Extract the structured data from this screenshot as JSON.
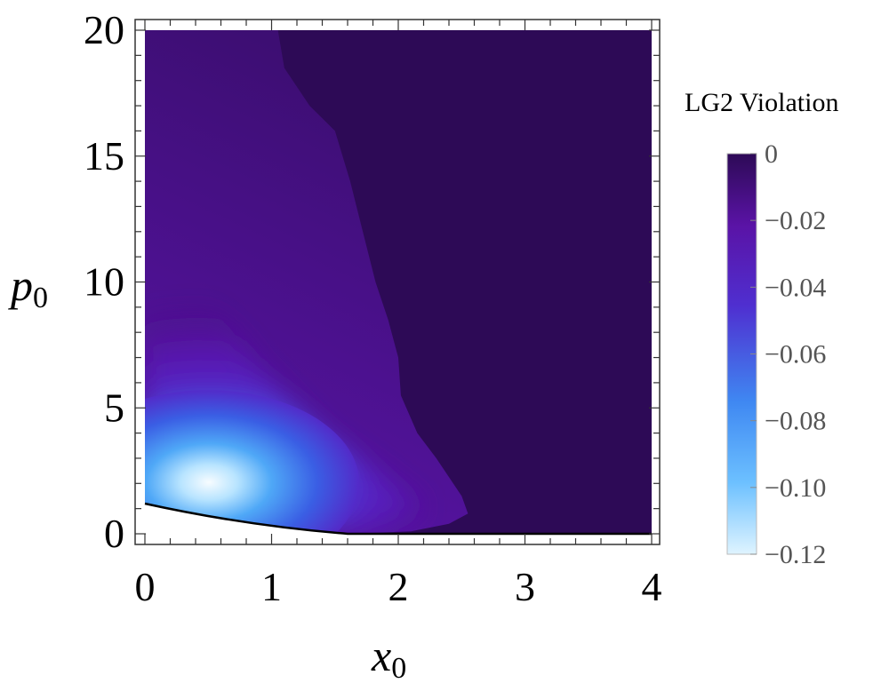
{
  "chart_data": {
    "type": "heatmap",
    "xlabel": "x",
    "xlabel_sub": "0",
    "ylabel": "p",
    "ylabel_sub": "0",
    "xlim": [
      0,
      4
    ],
    "ylim": [
      0,
      20
    ],
    "x_ticks": [
      "0",
      "1",
      "2",
      "3",
      "4"
    ],
    "y_ticks": [
      "0",
      "5",
      "10",
      "15",
      "20"
    ],
    "x_tick_values": [
      0,
      1,
      2,
      3,
      4
    ],
    "y_tick_values": [
      0,
      5,
      10,
      15,
      20
    ],
    "grid": false,
    "colorbar": {
      "title": "LG2 Violation",
      "range": [
        -0.12,
        0
      ],
      "ticks": [
        "0",
        "−0.02",
        "−0.04",
        "−0.06",
        "−0.08",
        "−0.10",
        "−0.12"
      ],
      "tick_values": [
        0,
        -0.02,
        -0.04,
        -0.06,
        -0.08,
        -0.1,
        -0.12
      ],
      "placement": "right"
    },
    "colors": {
      "zero": "#2d0a56",
      "mid": "#6a17b2",
      "low": "#3f88f2",
      "min": "#dff4ff"
    },
    "minimum_location": {
      "x": 0.5,
      "y": 2.0,
      "value": -0.12
    },
    "boundary_curve": {
      "x": [
        0,
        1.6
      ],
      "y": [
        1.2,
        0
      ]
    }
  }
}
